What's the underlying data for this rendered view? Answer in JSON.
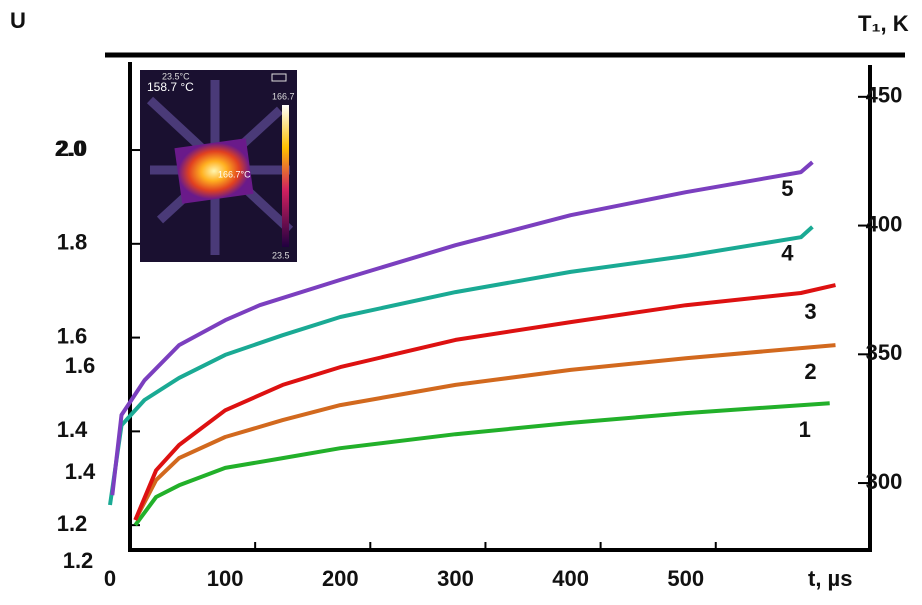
{
  "chart_data": {
    "type": "line",
    "ylabel": "U",
    "y2label": "T₁, K",
    "xlabel": "t, µs",
    "xlim": [
      0,
      660
    ],
    "xticks": [
      0,
      100,
      200,
      300,
      400,
      500
    ],
    "ylim": [
      1.147,
      2.192
    ],
    "yticks": [
      {
        "value": 1.2,
        "label": "1.2"
      },
      {
        "value": 1.4,
        "label": "1.4"
      },
      {
        "value": 1.6,
        "label": "1.6"
      },
      {
        "value": 1.8,
        "label": "1.8"
      },
      {
        "value": 2.0,
        "label": "2.0"
      }
    ],
    "extra_ylabels": [
      "2.0",
      "1.6",
      "1.4",
      "1.2"
    ],
    "y2lim": [
      274,
      464.3
    ],
    "y2ticks": [
      300,
      350,
      400,
      450
    ],
    "series": [
      {
        "name": "1",
        "color": "#22b02a",
        "x": [
          22,
          40,
          60,
          100,
          150,
          200,
          300,
          400,
          500,
          625
        ],
        "values": [
          1.2,
          1.26,
          1.285,
          1.322,
          1.343,
          1.364,
          1.394,
          1.418,
          1.439,
          1.46
        ]
      },
      {
        "name": "2",
        "color": "#d2691e",
        "x": [
          22,
          40,
          60,
          100,
          150,
          200,
          300,
          400,
          500,
          630
        ],
        "values": [
          1.211,
          1.296,
          1.343,
          1.388,
          1.424,
          1.456,
          1.499,
          1.531,
          1.556,
          1.584
        ]
      },
      {
        "name": "3",
        "color": "#dd1111",
        "x": [
          22,
          40,
          60,
          100,
          150,
          200,
          300,
          400,
          500,
          600,
          630
        ],
        "values": [
          1.211,
          1.317,
          1.371,
          1.445,
          1.499,
          1.537,
          1.595,
          1.633,
          1.669,
          1.695,
          1.712
        ]
      },
      {
        "name": "4",
        "color": "#1aaa94",
        "x": [
          0,
          10,
          30,
          60,
          100,
          150,
          200,
          300,
          400,
          500,
          600,
          610
        ],
        "values": [
          1.243,
          1.413,
          1.467,
          1.514,
          1.563,
          1.605,
          1.644,
          1.697,
          1.74,
          1.774,
          1.814,
          1.836
        ]
      },
      {
        "name": "5",
        "color": "#7b3fbf",
        "x": [
          2,
          10,
          30,
          60,
          100,
          130,
          200,
          300,
          400,
          500,
          600,
          610
        ],
        "values": [
          1.264,
          1.435,
          1.509,
          1.584,
          1.637,
          1.669,
          1.723,
          1.797,
          1.861,
          1.91,
          1.953,
          1.974
        ]
      }
    ]
  },
  "inset": {
    "top_left": "23.5°C",
    "reading": "158.7 °C",
    "scale_max": "166.7",
    "spot": "166.7°C",
    "scale_min": "23.5"
  }
}
